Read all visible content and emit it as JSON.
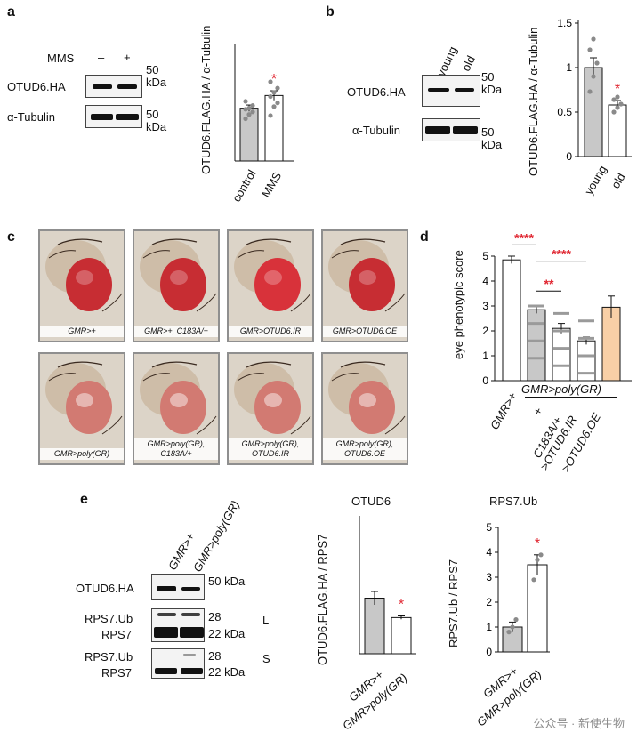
{
  "panels": {
    "a": {
      "letter": "a",
      "blot": {
        "treatment_label": "MMS",
        "lanes": [
          "–",
          "+"
        ],
        "rows": [
          "OTUD6.HA",
          "α-Tubulin"
        ],
        "marker_value": "50",
        "marker_unit": "kDa"
      },
      "chart_data": {
        "type": "bar",
        "categories": [
          "control",
          "MMS"
        ],
        "values": [
          1.0,
          1.24
        ],
        "errors": [
          0.06,
          0.09
        ],
        "points": [
          [
            0.8,
            0.88,
            0.93,
            0.98,
            1.0,
            1.05,
            1.13
          ],
          [
            0.86,
            1.03,
            1.1,
            1.22,
            1.3,
            1.38,
            1.5
          ]
        ],
        "ylabel": "OTUD6.FLAG.HA / α-Tubulin",
        "significance": [
          "",
          "*"
        ],
        "colors": [
          "#c8c8c8",
          "#ffffff"
        ]
      }
    },
    "b": {
      "letter": "b",
      "blot": {
        "lanes": [
          "young",
          "old"
        ],
        "rows": [
          "OTUD6.HA",
          "α-Tubulin"
        ],
        "marker_value": "50",
        "marker_unit": "kDa"
      },
      "chart_data": {
        "type": "bar",
        "categories": [
          "young",
          "old"
        ],
        "values": [
          1.0,
          0.58
        ],
        "errors": [
          0.11,
          0.05
        ],
        "points": [
          [
            0.73,
            0.9,
            1.05,
            1.2,
            1.32
          ],
          [
            0.5,
            0.55,
            0.59,
            0.64,
            0.67
          ]
        ],
        "ylabel": "OTUD6.FLAG.HA / α-Tubulin",
        "yticks": [
          "0",
          "0.5",
          "1",
          "1.5"
        ],
        "ylim": [
          0,
          1.5
        ],
        "significance": [
          "",
          "*"
        ],
        "colors": [
          "#c8c8c8",
          "#ffffff"
        ]
      }
    },
    "c": {
      "letter": "c",
      "photos": [
        "GMR>+",
        "GMR>+, C183A/+",
        "GMR>OTUD6.IR",
        "GMR>OTUD6.OE",
        "GMR>poly(GR)",
        "GMR>poly(GR), C183A/+",
        "GMR>poly(GR), OTUD6.IR",
        "GMR>poly(GR), OTUD6.OE"
      ]
    },
    "d": {
      "letter": "d",
      "chart_data": {
        "type": "bar",
        "categories": [
          "GMR>+",
          "+",
          "C183A/+",
          ">OTUD6.IR",
          ">OTUD6.OE"
        ],
        "group_label": "GMR>poly(GR)",
        "values": [
          4.85,
          2.85,
          2.1,
          1.6,
          2.95
        ],
        "errors": [
          0.15,
          0.15,
          0.2,
          0.15,
          0.45
        ],
        "ylabel": "eye phenotypic score",
        "yticks": [
          "0",
          "1",
          "2",
          "3",
          "4",
          "5"
        ],
        "ylim": [
          0,
          5
        ],
        "colors": [
          "#ffffff",
          "#c8c8c8",
          "#ffffff",
          "#ffffff",
          "#f8cfa6"
        ],
        "comparisons": [
          "****",
          "**",
          "****"
        ]
      }
    },
    "e": {
      "letter": "e",
      "blot": {
        "lanes": [
          "GMR>+",
          "GMR>poly(GR)"
        ],
        "rows": [
          "OTUD6.HA",
          "RPS7.Ub",
          "RPS7",
          "RPS7.Ub",
          "RPS7"
        ],
        "markers": [
          "50 kDa",
          "28",
          "22 kDa",
          "28",
          "22 kDa"
        ],
        "exposure_labels": [
          "L",
          "S"
        ]
      },
      "chart_otud6": {
        "type": "bar",
        "title": "OTUD6",
        "categories": [
          "GMR>+",
          "GMR>poly(GR)"
        ],
        "values": [
          1.0,
          0.65
        ],
        "errors": [
          0.12,
          0.03
        ],
        "ylabel": "OTUD6.FLAG.HA / RPS7",
        "significance": [
          "",
          "*"
        ],
        "colors": [
          "#c8c8c8",
          "#ffffff"
        ]
      },
      "chart_rps7": {
        "type": "bar",
        "title": "RPS7.Ub",
        "categories": [
          "GMR>+",
          "GMR>poly(GR)"
        ],
        "values": [
          1.0,
          3.5
        ],
        "errors": [
          0.2,
          0.4
        ],
        "points": [
          [
            0.8,
            1.0,
            1.3
          ],
          [
            2.9,
            3.7,
            3.9
          ]
        ],
        "ylabel": "RPS7.Ub / RPS7",
        "yticks": [
          "0",
          "1",
          "2",
          "3",
          "4",
          "5"
        ],
        "ylim": [
          0,
          5
        ],
        "significance": [
          "",
          "*"
        ],
        "colors": [
          "#c8c8c8",
          "#ffffff"
        ]
      }
    }
  },
  "watermark": "公众号 · 新使生物",
  "colors": {
    "significance": "#e0242f",
    "accent_bar": "#f8cfa6",
    "control_bar": "#c8c8c8"
  }
}
